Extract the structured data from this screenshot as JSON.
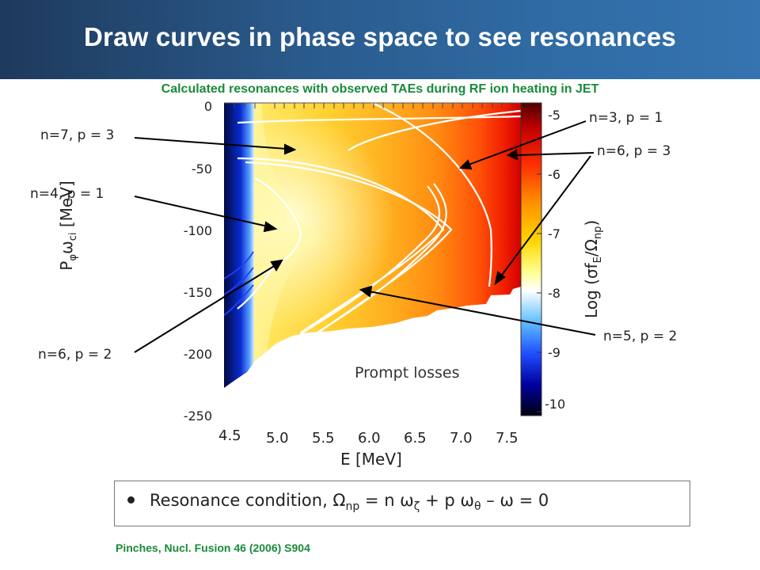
{
  "header": {
    "title": "Draw curves in phase space to see resonances",
    "subtitle": "Calculated resonances with observed TAEs during RF ion heating in JET"
  },
  "chart_data": {
    "type": "heatmap",
    "xlabel": "E [MeV]",
    "ylabel_main": "P",
    "ylabel_sub": "φ",
    "ylabel_main2": "ω",
    "ylabel_sub2": "ci",
    "ylabel_unit": "[MeV]",
    "x_ticks": [
      "4.5",
      "5.0",
      "5.5",
      "6.0",
      "6.5",
      "7.0",
      "7.5"
    ],
    "y_ticks": [
      "0",
      "-50",
      "-100",
      "-150",
      "-200",
      "-250"
    ],
    "xlim": [
      4.5,
      7.5
    ],
    "ylim": [
      -250,
      0
    ],
    "colorbar": {
      "label_prefix": "Log (σf",
      "label_sub1": "E",
      "label_mid": "/Ω",
      "label_sub2": "np",
      "label_suffix": ")",
      "ticks": [
        "-5",
        "-6",
        "-7",
        "-8",
        "-9",
        "-10"
      ],
      "range": [
        -10,
        -5
      ],
      "colors": [
        "#000010",
        "#0000a0",
        "#3050ff",
        "#5ab4ff",
        "#ffffff",
        "#ffff80",
        "#ffd000",
        "#ff8000",
        "#ff2000",
        "#b00000",
        "#500000"
      ]
    },
    "region_label": "Prompt losses",
    "annotations": [
      {
        "text": "n=7, p = 3"
      },
      {
        "text": "n=4, p = 1"
      },
      {
        "text": "n=6, p = 2"
      },
      {
        "text": "n=3, p = 1"
      },
      {
        "text": "n=6, p = 3"
      },
      {
        "text": "n=5, p = 2"
      }
    ]
  },
  "bullet": {
    "prefix": "Resonance condition, Ω",
    "sub1": "np",
    "mid1": " = n ω",
    "sub2": "ζ",
    "mid2": "  + p ω",
    "sub3": "θ",
    "suffix": " – ω = 0"
  },
  "reference": "Pinches, Nucl. Fusion 46 (2006) S904"
}
